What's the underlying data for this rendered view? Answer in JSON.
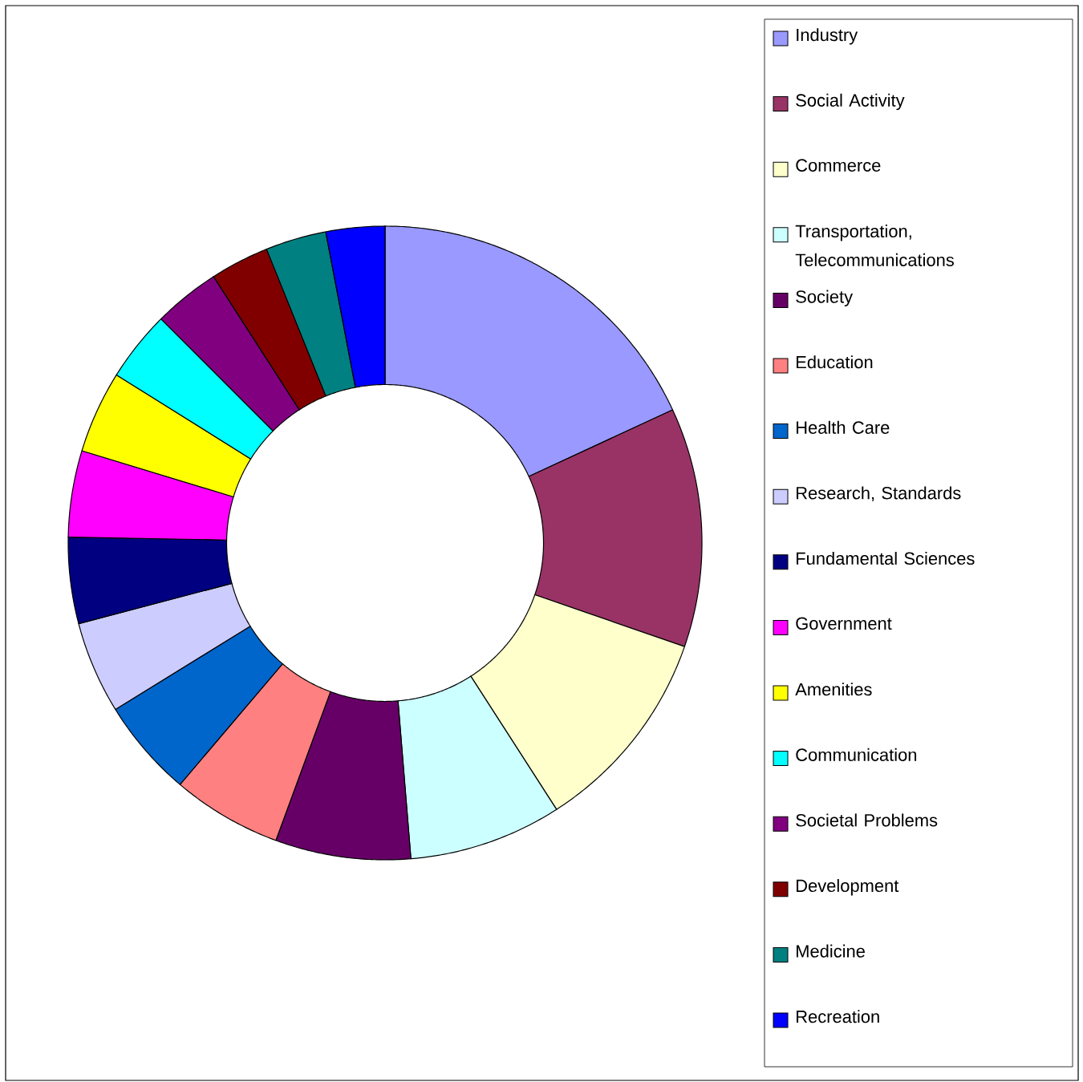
{
  "chart_data": {
    "type": "donut",
    "categories": [
      "Industry",
      "Social Activity",
      "Commerce",
      "Transportation, Telecommunications",
      "Society",
      "Education",
      "Health Care",
      "Research, Standards",
      "Fundamental Sciences",
      "Government",
      "Amenities",
      "Communication",
      "Societal Problems",
      "Development",
      "Medicine",
      "Recreation"
    ],
    "values": [
      18.1,
      12.2,
      10.6,
      7.8,
      6.9,
      5.6,
      5.0,
      4.7,
      4.4,
      4.4,
      4.2,
      3.6,
      3.4,
      3.0,
      3.1,
      3.0
    ],
    "colors": [
      "#9999ff",
      "#993366",
      "#ffffcc",
      "#ccffff",
      "#660066",
      "#ff8080",
      "#0066cc",
      "#ccccff",
      "#000080",
      "#ff00ff",
      "#ffff00",
      "#00ffff",
      "#800080",
      "#800000",
      "#008080",
      "#0000ff"
    ],
    "legend": "right"
  }
}
